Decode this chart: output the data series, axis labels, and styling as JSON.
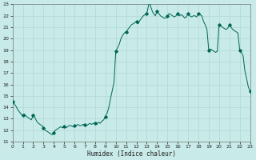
{
  "title": "",
  "xlabel": "Humidex (Indice chaleur)",
  "ylabel": "",
  "bg_color": "#c8eae8",
  "line_color": "#006655",
  "marker_color": "#006655",
  "grid_color": "#b0d8d4",
  "ylim": [
    11,
    23
  ],
  "xlim": [
    0,
    23
  ],
  "yticks": [
    11,
    12,
    13,
    14,
    15,
    16,
    17,
    18,
    19,
    20,
    21,
    22,
    23
  ],
  "xticks": [
    0,
    1,
    2,
    3,
    4,
    5,
    6,
    7,
    8,
    9,
    10,
    11,
    12,
    13,
    14,
    15,
    16,
    17,
    18,
    19,
    20,
    21,
    22,
    23
  ],
  "x": [
    0.0,
    0.17,
    0.33,
    0.5,
    0.67,
    0.83,
    1.0,
    1.17,
    1.33,
    1.5,
    1.67,
    1.83,
    2.0,
    2.17,
    2.33,
    2.5,
    2.67,
    2.83,
    3.0,
    3.17,
    3.33,
    3.5,
    3.67,
    3.83,
    4.0,
    4.17,
    4.33,
    4.5,
    4.67,
    4.83,
    5.0,
    5.17,
    5.33,
    5.5,
    5.67,
    5.83,
    6.0,
    6.17,
    6.33,
    6.5,
    6.67,
    6.83,
    7.0,
    7.17,
    7.33,
    7.5,
    7.67,
    7.83,
    8.0,
    8.17,
    8.33,
    8.5,
    8.67,
    8.83,
    9.0,
    9.17,
    9.33,
    9.5,
    9.67,
    9.83,
    10.0,
    10.17,
    10.33,
    10.5,
    10.67,
    10.83,
    11.0,
    11.17,
    11.33,
    11.5,
    11.67,
    11.83,
    12.0,
    12.17,
    12.33,
    12.5,
    12.67,
    12.83,
    13.0,
    13.08,
    13.17,
    13.25,
    13.33,
    13.42,
    13.5,
    13.58,
    13.67,
    13.75,
    13.83,
    14.0,
    14.17,
    14.33,
    14.5,
    14.67,
    14.83,
    15.0,
    15.17,
    15.33,
    15.5,
    15.67,
    15.83,
    16.0,
    16.17,
    16.33,
    16.5,
    16.67,
    16.83,
    17.0,
    17.17,
    17.33,
    17.5,
    17.67,
    17.83,
    18.0,
    18.17,
    18.33,
    18.5,
    18.67,
    18.83,
    19.0,
    19.17,
    19.33,
    19.5,
    19.67,
    19.83,
    20.0,
    20.17,
    20.33,
    20.5,
    20.67,
    20.83,
    21.0,
    21.17,
    21.33,
    21.5,
    21.67,
    21.83,
    22.0,
    22.17,
    22.33,
    22.5,
    22.67,
    22.83,
    23.0
  ],
  "y": [
    14.5,
    14.3,
    14.1,
    13.8,
    13.6,
    13.4,
    13.3,
    13.4,
    13.2,
    13.1,
    13.0,
    12.9,
    13.3,
    13.1,
    12.8,
    12.6,
    12.5,
    12.4,
    12.2,
    12.0,
    11.9,
    11.8,
    11.7,
    11.6,
    11.8,
    12.0,
    12.1,
    12.2,
    12.3,
    12.2,
    12.3,
    12.2,
    12.3,
    12.4,
    12.4,
    12.3,
    12.4,
    12.4,
    12.5,
    12.4,
    12.4,
    12.5,
    12.5,
    12.4,
    12.5,
    12.6,
    12.5,
    12.6,
    12.6,
    12.5,
    12.7,
    12.6,
    12.8,
    12.9,
    13.2,
    13.5,
    14.0,
    14.8,
    15.5,
    16.2,
    18.9,
    19.2,
    19.5,
    20.0,
    20.3,
    20.5,
    20.6,
    20.8,
    21.0,
    21.2,
    21.3,
    21.4,
    21.5,
    21.3,
    21.6,
    21.8,
    22.0,
    22.1,
    22.2,
    22.5,
    22.9,
    23.2,
    23.0,
    22.7,
    22.5,
    22.3,
    22.2,
    22.1,
    22.0,
    22.4,
    22.2,
    22.0,
    21.9,
    21.8,
    21.8,
    22.0,
    22.2,
    22.1,
    22.0,
    21.9,
    22.0,
    22.2,
    22.0,
    22.1,
    22.0,
    21.8,
    21.9,
    22.2,
    22.0,
    21.9,
    22.0,
    22.0,
    21.9,
    22.2,
    22.1,
    22.0,
    21.5,
    21.2,
    20.8,
    19.0,
    19.1,
    19.0,
    18.9,
    18.8,
    18.9,
    21.2,
    21.1,
    21.0,
    20.9,
    20.8,
    20.9,
    21.2,
    21.0,
    20.8,
    20.7,
    20.6,
    20.5,
    19.0,
    18.8,
    18.5,
    17.2,
    16.5,
    15.8,
    15.4
  ],
  "marker_x": [
    0,
    1,
    2,
    3,
    4,
    5,
    6,
    7,
    8,
    9,
    10,
    11,
    12,
    13,
    14,
    15,
    16,
    17,
    18,
    19,
    20,
    21,
    22,
    23
  ],
  "marker_y": [
    14.5,
    13.3,
    13.3,
    12.2,
    11.8,
    12.3,
    12.4,
    12.5,
    12.6,
    13.2,
    18.9,
    20.6,
    21.5,
    22.2,
    22.4,
    22.0,
    22.2,
    22.2,
    22.2,
    19.0,
    21.2,
    21.2,
    19.0,
    15.4
  ]
}
